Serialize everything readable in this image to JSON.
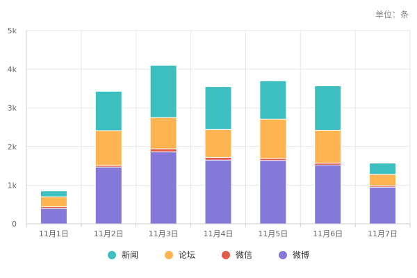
{
  "unit_label": "单位：条",
  "chart_data": {
    "type": "bar",
    "stacked": true,
    "categories": [
      "11月1日",
      "11月2日",
      "11月3日",
      "11月4日",
      "11月5日",
      "11月6日",
      "11月7日"
    ],
    "ylim": [
      0,
      5000
    ],
    "yticks": [
      0,
      1000,
      2000,
      3000,
      4000,
      5000
    ],
    "ytick_labels": [
      "0",
      "1k",
      "2k",
      "3k",
      "4k",
      "5k"
    ],
    "grid": true,
    "legend_position": "bottom",
    "series": [
      {
        "name": "微博",
        "color": "#8479d9",
        "values": [
          400,
          1470,
          1860,
          1650,
          1640,
          1520,
          950
        ]
      },
      {
        "name": "微信",
        "color": "#e15b4b",
        "values": [
          40,
          40,
          80,
          70,
          50,
          50,
          40
        ]
      },
      {
        "name": "论坛",
        "color": "#fdb451",
        "values": [
          260,
          900,
          810,
          720,
          1020,
          850,
          290
        ]
      },
      {
        "name": "新闻",
        "color": "#3dbfbf",
        "values": [
          150,
          1020,
          1350,
          1110,
          990,
          1150,
          290
        ]
      }
    ]
  },
  "legend_order": [
    "新闻",
    "论坛",
    "微信",
    "微博"
  ]
}
